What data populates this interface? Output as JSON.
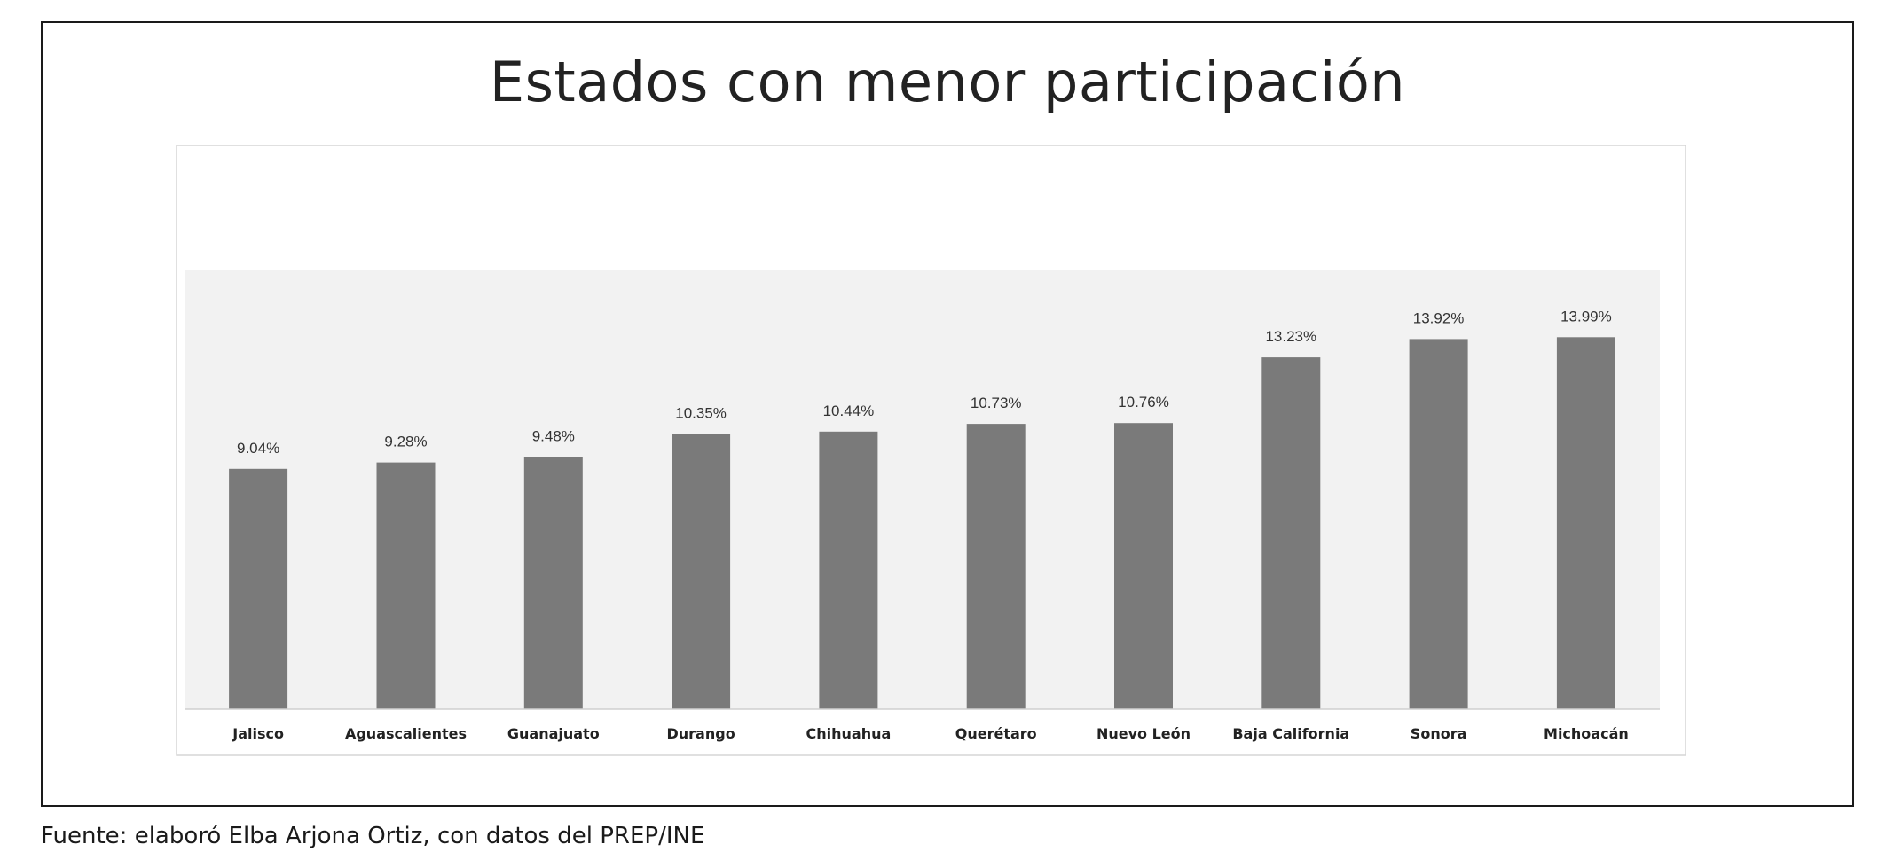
{
  "chart_data": {
    "type": "bar",
    "title": "Estados con menor participación",
    "categories": [
      "Jalisco",
      "Aguascalientes",
      "Guanajuato",
      "Durango",
      "Chihuahua",
      "Querétaro",
      "Nuevo León",
      "Baja California",
      "Sonora",
      "Michoacán"
    ],
    "values": [
      9.04,
      9.28,
      9.48,
      10.35,
      10.44,
      10.73,
      10.76,
      13.23,
      13.92,
      13.99
    ],
    "value_labels": [
      "9.04%",
      "9.28%",
      "9.48%",
      "10.35%",
      "10.44%",
      "10.73%",
      "10.76%",
      "13.23%",
      "13.92%",
      "13.99%"
    ],
    "unit": "%",
    "xlabel": "",
    "ylabel": "",
    "ylim": [
      0,
      16.5
    ],
    "grid": false,
    "legend": "none",
    "colors": {
      "bar": "#7a7a7a",
      "plot_background": "#f2f2f2",
      "chart_background": "#ffffff"
    }
  },
  "source": "Fuente: elaboró Elba Arjona Ortiz, con datos del PREP/INE"
}
